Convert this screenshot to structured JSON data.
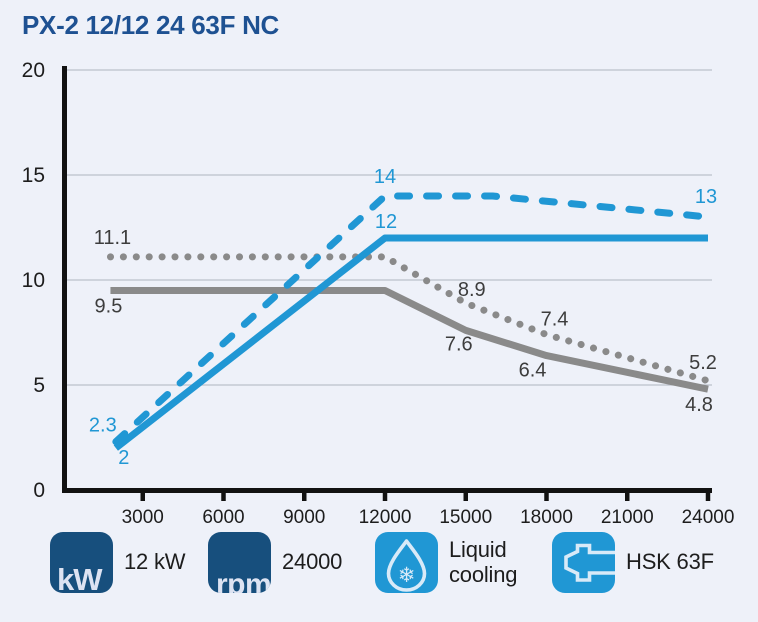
{
  "title": "PX-2 12/12 24 63F NC",
  "colors": {
    "background": "#eef1f9",
    "title": "#1e5192",
    "accent_blue": "#2097d4",
    "dark_blue": "#174f7d",
    "gray_line": "#8a8a8a",
    "label_dark": "#3d3d3d",
    "axis": "#121212",
    "gridline": "#bcc1cb",
    "tick_text": "#1d1d1d",
    "icon_glyph": "#dde3f2"
  },
  "chart_data": {
    "type": "line",
    "title": "PX-2 12/12 24 63F NC",
    "xlabel": "",
    "ylabel": "",
    "xlim": [
      0,
      24000
    ],
    "ylim": [
      0,
      20
    ],
    "x_ticks": [
      3000,
      6000,
      9000,
      12000,
      15000,
      18000,
      21000,
      24000
    ],
    "y_ticks": [
      0,
      5,
      10,
      15,
      20
    ],
    "grid": "horizontal-only",
    "legend_position": "none",
    "series": [
      {
        "name": "gray-dotted-curve",
        "style": "dotted",
        "color": "#8a8a8a",
        "label_color": "#3d3d3d",
        "points": [
          [
            1800,
            11.1
          ],
          [
            12000,
            11.1
          ],
          [
            15000,
            8.9
          ],
          [
            18000,
            7.4
          ],
          [
            24000,
            5.2
          ]
        ],
        "point_labels": [
          {
            "text": "11.1",
            "at": [
              1800,
              11.1
            ],
            "dx": 2,
            "dy": -13
          },
          {
            "text": "8.9",
            "at": [
              15000,
              8.9
            ],
            "dx": 6,
            "dy": -7
          },
          {
            "text": "7.4",
            "at": [
              18000,
              7.4
            ],
            "dx": 8,
            "dy": -9
          },
          {
            "text": "5.2",
            "at": [
              24000,
              5.2
            ],
            "dx": -5,
            "dy": -12
          }
        ]
      },
      {
        "name": "gray-solid-curve",
        "style": "solid",
        "color": "#8a8a8a",
        "label_color": "#3d3d3d",
        "points": [
          [
            1800,
            9.5
          ],
          [
            12000,
            9.5
          ],
          [
            15000,
            7.6
          ],
          [
            18000,
            6.4
          ],
          [
            24000,
            4.8
          ]
        ],
        "point_labels": [
          {
            "text": "9.5",
            "at": [
              1800,
              9.5
            ],
            "dx": -2,
            "dy": 22
          },
          {
            "text": "7.6",
            "at": [
              15000,
              7.6
            ],
            "dx": -7,
            "dy": 20
          },
          {
            "text": "6.4",
            "at": [
              18000,
              6.4
            ],
            "dx": -14,
            "dy": 21
          },
          {
            "text": "4.8",
            "at": [
              24000,
              4.8
            ],
            "dx": -9,
            "dy": 22
          }
        ]
      },
      {
        "name": "blue-dashed-curve",
        "style": "dashed",
        "color": "#2097d4",
        "label_color": "#2097d4",
        "points": [
          [
            2000,
            2.3
          ],
          [
            12000,
            14
          ],
          [
            16000,
            14
          ],
          [
            24000,
            13
          ]
        ],
        "point_labels": [
          {
            "text": "2.3",
            "at": [
              2000,
              2.3
            ],
            "dx": -13,
            "dy": -10
          },
          {
            "text": "14",
            "at": [
              12000,
              14
            ],
            "dx": 0,
            "dy": -13
          },
          {
            "text": "13",
            "at": [
              24000,
              13
            ],
            "dx": -2,
            "dy": -14
          }
        ]
      },
      {
        "name": "blue-solid-curve",
        "style": "solid",
        "color": "#2097d4",
        "label_color": "#2097d4",
        "points": [
          [
            2000,
            2
          ],
          [
            12000,
            12
          ],
          [
            24000,
            12
          ]
        ],
        "point_labels": [
          {
            "text": "2",
            "at": [
              2000,
              2
            ],
            "dx": 8,
            "dy": 16
          },
          {
            "text": "12",
            "at": [
              12000,
              12
            ],
            "dx": 1,
            "dy": -10
          }
        ]
      }
    ]
  },
  "legend": {
    "items": [
      {
        "icon": "kw-icon",
        "icon_text": "kW",
        "label": "12 kW"
      },
      {
        "icon": "rpm-icon",
        "icon_text": "rpm",
        "label": "24000"
      },
      {
        "icon": "liquid-cooling-icon",
        "icon_text": "",
        "label": "Liquid cooling"
      },
      {
        "icon": "hsk-63f-icon",
        "icon_text": "",
        "label": "HSK 63F"
      }
    ]
  }
}
